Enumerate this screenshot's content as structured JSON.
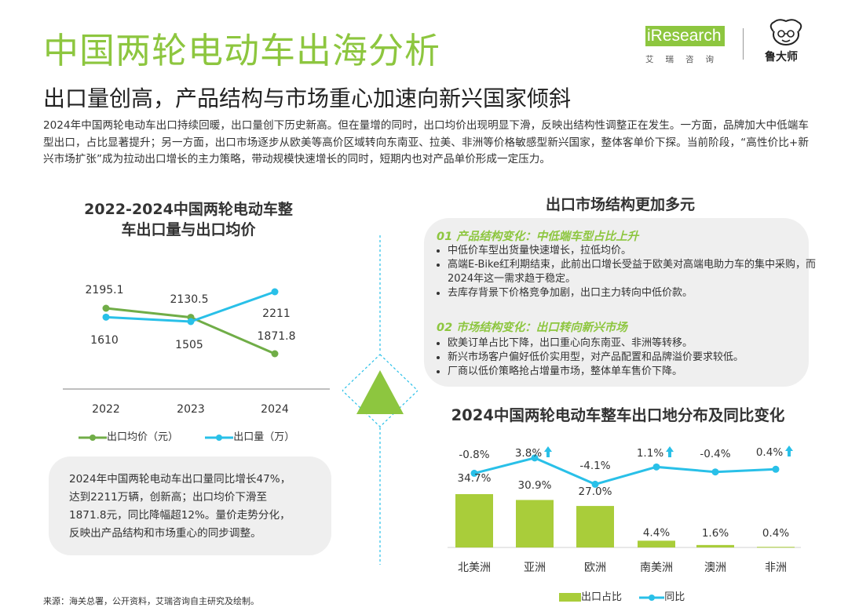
{
  "header": {
    "title": "中国两轮电动车出海分析",
    "subtitle": "出口量创高，产品结构与市场重心加速向新兴国家倾斜",
    "intro": "2024年中国两轮电动车出口持续回暖，出口量创下历史新高。但在量增的同时，出口均价出现明显下滑，反映出结构性调整正在发生。一方面，品牌加大中低端车型出口，占比显著提升；另一方面，出口市场逐步从欧美等高价区域转向东南亚、拉美、非洲等价格敏感型新兴国家，整体客单价下探。当前阶段，“高性价比+新兴市场扩张”成为拉动出口增长的主力策略，带动规模快速增长的同时，短期内也对产品单价形成一定压力。"
  },
  "logos": {
    "iresearch_word": "iResearch",
    "iresearch_sub": "艾瑞咨询",
    "partner": "鲁大师"
  },
  "left_chart": {
    "title_line1": "2022-2024中国两轮电动车整",
    "title_line2": "车出口量与出口均价",
    "legend_price": "出口均价（元）",
    "legend_volume": "出口量（万）",
    "colors": {
      "price": "#70ad47",
      "volume": "#29c0e8"
    }
  },
  "summary": {
    "line1": "2024年中国两轮电动车出口量同比增长47%，",
    "line2": "达到2211万辆，创新高；出口均价下滑至",
    "line3": "1871.8元，同比降幅超12%。量价走势分化，",
    "line4": "反映出产品结构和市场重心的同步调整。"
  },
  "right_section": {
    "title": "出口市场结构更加多元",
    "block1": {
      "heading": "01 产品结构变化：中低端车型占比上升",
      "bullets": [
        "中低价车型出货量快速增长，拉低均价。",
        "高端E-Bike红利期结束，此前出口增长受益于欧美对高端电助力车的集中采购，而2024年这一需求趋于稳定。",
        "去库存背景下价格竞争加剧，出口主力转向中低价款。"
      ]
    },
    "block2": {
      "heading": "02 市场结构变化：出口转向新兴市场",
      "bullets": [
        "欧美订单占比下降，出口重心向东南亚、非洲等转移。",
        "新兴市场客户偏好低价实用型，对产品配置和品牌溢价要求较低。",
        "厂商以低价策略抢占增量市场，整体单车售价下降。"
      ]
    }
  },
  "right_chart": {
    "title": "2024中国两轮电动车整车出口地分布及同比变化",
    "legend_share": "出口占比",
    "legend_yoy": "同比",
    "colors": {
      "bar": "#a9cd3a",
      "line": "#29c0e8",
      "up_arrow": "#29c0e8"
    }
  },
  "chart_data": [
    {
      "type": "line",
      "title": "2022-2024中国两轮电动车整车出口量与出口均价",
      "x": [
        "2022",
        "2023",
        "2024"
      ],
      "series": [
        {
          "name": "出口均价（元）",
          "values": [
            2195.1,
            2130.5,
            1871.8
          ],
          "labels": [
            "2195.1",
            "2130.5",
            "1871.8"
          ]
        },
        {
          "name": "出口量（万）",
          "values": [
            1610,
            1505,
            2211
          ],
          "labels": [
            "1610",
            "1505",
            "2211"
          ]
        }
      ],
      "grid": false,
      "legend": "bottom"
    },
    {
      "type": "bar",
      "title": "2024中国两轮电动车整车出口地分布及同比变化",
      "categories": [
        "北美洲",
        "亚洲",
        "欧洲",
        "南美洲",
        "澳洲",
        "非洲"
      ],
      "series": [
        {
          "name": "出口占比",
          "type": "bar",
          "values": [
            34.7,
            30.9,
            27.0,
            4.4,
            1.6,
            0.4
          ],
          "labels": [
            "34.7%",
            "30.9%",
            "27.0%",
            "4.4%",
            "1.6%",
            "0.4%"
          ]
        },
        {
          "name": "同比",
          "type": "line",
          "values": [
            -0.8,
            3.8,
            -4.1,
            1.1,
            -0.4,
            0.4
          ],
          "labels": [
            "-0.8%",
            "3.8%",
            "-4.1%",
            "1.1%",
            "-0.4%",
            "0.4%"
          ],
          "up_arrows": [
            false,
            true,
            false,
            true,
            false,
            true
          ]
        }
      ],
      "grid": false,
      "legend": "bottom"
    }
  ],
  "source": "来源：海关总署，公开资料，艾瑞咨询自主研究及绘制。"
}
